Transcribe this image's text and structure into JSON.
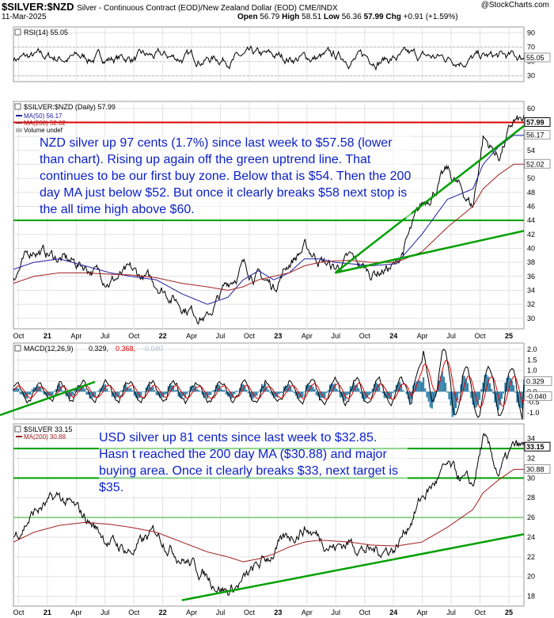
{
  "header": {
    "symbol": "$SILVER:$NZD",
    "description": "Silver - Continuous Contract (EOD)/New Zealand Dollar (EOD) CME/INDX",
    "date": "11-Mar-2025",
    "open_label": "Open",
    "open": "56.79",
    "high_label": "High",
    "high": "58.51",
    "low_label": "Low",
    "low": "56.36",
    "close": "57.99",
    "chg_label": "Chg",
    "chg": "+0.91 (+1.59%)",
    "watermark": "@StockCharts.com"
  },
  "chart_data": [
    {
      "type": "line",
      "panel": "rsi",
      "legend": "RSI(14) 55.05",
      "y_ticks": [
        30,
        50,
        70,
        90
      ],
      "ylim": [
        22,
        98
      ],
      "levels": [
        30,
        70
      ],
      "last_value": 55.05,
      "last_label": "55.05",
      "color": "#000000"
    },
    {
      "type": "line",
      "panel": "price-nzd",
      "legend": [
        "$SILVER:$NZD (Daily) 57.99",
        "MA(50) 56.17",
        "MA(200) 52.02",
        "Volume undef"
      ],
      "y_ticks": [
        30,
        32,
        34,
        36,
        38,
        40,
        42,
        44,
        46,
        48,
        50,
        52,
        54,
        56,
        58,
        60
      ],
      "ylim": [
        28.5,
        61
      ],
      "x_ticks": [
        "Oct",
        "21",
        "Apr",
        "Jul",
        "Oct",
        "22",
        "Apr",
        "Jul",
        "Oct",
        "23",
        "Apr",
        "Jul",
        "Oct",
        "24",
        "Apr",
        "Jul",
        "Oct",
        "25"
      ],
      "x": [
        0,
        4,
        9,
        14,
        19,
        23,
        28,
        33,
        38,
        42,
        45,
        48,
        51,
        54,
        57,
        60,
        63,
        66,
        70,
        75,
        80,
        85,
        90,
        92,
        95,
        98
      ],
      "close": [
        36,
        40,
        38.5,
        37.5,
        35.5,
        36.5,
        35,
        32,
        30,
        35,
        37.5,
        36,
        34.5,
        38,
        40,
        38.5,
        37,
        38.5,
        36.5,
        37.5,
        46,
        51,
        46,
        56,
        53,
        58
      ],
      "ma50": [
        37,
        38,
        38.5,
        37.5,
        36.5,
        36,
        35.5,
        33.5,
        32,
        33,
        35.5,
        36.8,
        35.5,
        36.5,
        38.5,
        38.5,
        38,
        37.8,
        37.5,
        37.8,
        42,
        47,
        48.5,
        52,
        54.5,
        56.17
      ],
      "ma200": [
        35,
        36,
        36.5,
        36.5,
        36.3,
        36.2,
        35.8,
        35,
        34.5,
        34,
        34.5,
        35.5,
        36,
        36.5,
        37.5,
        38,
        38.2,
        38.3,
        38,
        38,
        39.5,
        43,
        46,
        48.5,
        50.5,
        52.02
      ],
      "value_labels": [
        {
          "v": 57.99,
          "text": "57.99"
        },
        {
          "v": 56.17,
          "text": "56.17"
        },
        {
          "v": 52.02,
          "text": "52.02"
        }
      ],
      "hlines": [
        {
          "y": 58,
          "color": "#e00000"
        },
        {
          "y": 44,
          "color": "#00a000"
        }
      ],
      "trendlines": [
        {
          "from": [
            63,
            36.5
          ],
          "to": [
            100,
            57.5
          ],
          "color": "#00a000"
        },
        {
          "from": [
            63,
            36.5
          ],
          "to": [
            100,
            42.5
          ],
          "color": "#00a000"
        }
      ],
      "annotation": "NZD silver up 97 cents (1.7%) since last week to $57.58 (lower than chart). Rising up again off the green uptrend line. That continues to be our first buy zone. Below that is $54. Then the 200 day MA just below $52. But once it clearly breaks $58 next stop is the all time high above $60."
    },
    {
      "type": "line",
      "panel": "macd",
      "legend_prefix": "MACD(12,26,9)",
      "legend_v1": "0.329,",
      "legend_v2": "0.368,",
      "legend_v3": "-0.040",
      "y_ticks": [
        -1.0,
        -0.5,
        0.0,
        0.5,
        1.0,
        1.5,
        2.0
      ],
      "ylim": [
        -1.3,
        2.3
      ],
      "last_labels": [
        {
          "v": 0.329,
          "text": "0.329"
        },
        {
          "v": -0.04,
          "text": "-0.040"
        }
      ]
    },
    {
      "type": "line",
      "panel": "price-usd",
      "legend": [
        "$SILVER 33.15",
        "MA(200) 30.88"
      ],
      "y_ticks": [
        18,
        20,
        22,
        24,
        26,
        28,
        30,
        32,
        34
      ],
      "ylim": [
        17,
        35.5
      ],
      "x_ticks": [
        "Oct",
        "21",
        "Apr",
        "Jul",
        "Oct",
        "22",
        "Apr",
        "Jul",
        "Oct",
        "23",
        "Apr",
        "Jul",
        "Oct",
        "24",
        "Apr",
        "Jul",
        "Oct",
        "25"
      ],
      "x": [
        0,
        4,
        9,
        14,
        19,
        23,
        28,
        33,
        38,
        42,
        45,
        48,
        51,
        54,
        57,
        60,
        63,
        66,
        70,
        75,
        80,
        85,
        90,
        92,
        95,
        98
      ],
      "close": [
        24,
        26.5,
        28,
        26,
        23.5,
        22.5,
        24.5,
        22,
        20,
        18.5,
        19.5,
        21,
        22.5,
        24,
        25,
        24,
        23,
        23.5,
        22.5,
        23,
        28,
        31,
        29,
        34,
        30.5,
        33
      ],
      "ma200": [
        23.5,
        24.5,
        25.2,
        25.5,
        25.3,
        25,
        24.5,
        23.5,
        22.5,
        22,
        21.5,
        21.8,
        22.3,
        23,
        23.5,
        23.7,
        23.6,
        23.5,
        23.2,
        23.1,
        23.5,
        25,
        26.8,
        28.5,
        29.8,
        30.88
      ],
      "value_labels": [
        {
          "v": 33.15,
          "text": "33.15"
        },
        {
          "v": 30.88,
          "text": "30.88"
        }
      ],
      "hlines": [
        {
          "y": 33,
          "color": "#00a000"
        },
        {
          "y": 30,
          "color": "#00a000"
        },
        {
          "y": 26,
          "color": "#90d090"
        }
      ],
      "trendlines": [
        {
          "from": [
            33,
            17.6
          ],
          "to": [
            100,
            24.3
          ],
          "color": "#00a000"
        }
      ],
      "annotation": "USD silver up 81 cents since last week to $32.85. Hasn t reached the 200 day MA ($30.88) and major buying area. Once it clearly breaks $33, next target is $35."
    }
  ],
  "colors": {
    "price": "#000000",
    "ma50": "#1e1ea0",
    "ma200": "#a01e1e",
    "green": "#00a000",
    "red": "#e00000",
    "hist": "#2e7fa8",
    "annotation": "#0a1fc8"
  }
}
